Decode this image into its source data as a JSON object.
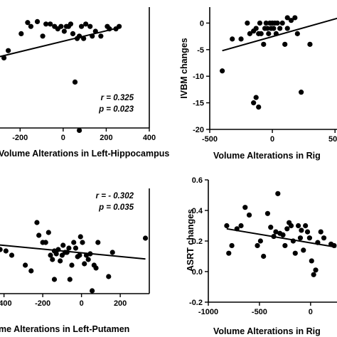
{
  "chart_data": [
    {
      "type": "scatter",
      "xlabel": "Volume Alterations in Left-Hippocampus",
      "ylabel": "",
      "xlim": [
        -300,
        400
      ],
      "ylim": [
        -21,
        4
      ],
      "xticks": [
        -200,
        0,
        200,
        400
      ],
      "xtick_labels": [
        "-200",
        "0",
        "200",
        "400"
      ],
      "yticks": [],
      "annotations": [
        "r = 0.325",
        "p = 0.023"
      ],
      "points": [
        [
          -275,
          -6.5
        ],
        [
          -255,
          -5
        ],
        [
          -195,
          -1.5
        ],
        [
          -165,
          0.8
        ],
        [
          -150,
          0
        ],
        [
          -120,
          1
        ],
        [
          -95,
          -2
        ],
        [
          -80,
          0.5
        ],
        [
          -60,
          0.5
        ],
        [
          -40,
          0
        ],
        [
          -25,
          -0.5
        ],
        [
          -10,
          0
        ],
        [
          5,
          -1
        ],
        [
          15,
          0
        ],
        [
          25,
          0
        ],
        [
          35,
          0.5
        ],
        [
          45,
          -1.5
        ],
        [
          55,
          -11.5
        ],
        [
          65,
          -2.5
        ],
        [
          75,
          -2
        ],
        [
          75,
          -21.5
        ],
        [
          85,
          0
        ],
        [
          95,
          -2.5
        ],
        [
          105,
          0.5
        ],
        [
          125,
          0
        ],
        [
          135,
          -2
        ],
        [
          150,
          -1
        ],
        [
          175,
          -2
        ],
        [
          205,
          0
        ],
        [
          215,
          -0.5
        ],
        [
          245,
          -0.5
        ],
        [
          260,
          0
        ]
      ],
      "fit": [
        [
          -300,
          -6.3
        ],
        [
          265,
          -0.2
        ]
      ]
    },
    {
      "type": "scatter",
      "xlabel": "Volume Alterations in Rig",
      "ylabel": "IVBM changes",
      "xlim": [
        -500,
        550
      ],
      "ylim": [
        -20,
        3
      ],
      "xticks": [
        -500,
        0,
        500
      ],
      "xtick_labels": [
        "-500",
        "0",
        "500"
      ],
      "yticks": [
        0,
        -5,
        -10,
        -15,
        -20
      ],
      "ytick_labels": [
        "0",
        "-5",
        "-10",
        "-15",
        "-20"
      ],
      "annotations": [],
      "points": [
        [
          -400,
          -9
        ],
        [
          -320,
          -3
        ],
        [
          -250,
          -3
        ],
        [
          -200,
          0
        ],
        [
          -180,
          -2
        ],
        [
          -150,
          -1.5
        ],
        [
          -130,
          -1
        ],
        [
          -110,
          -2
        ],
        [
          -100,
          0
        ],
        [
          -90,
          -2
        ],
        [
          -70,
          -4
        ],
        [
          -60,
          -1
        ],
        [
          -50,
          0
        ],
        [
          -40,
          -1
        ],
        [
          -30,
          -2
        ],
        [
          -20,
          0
        ],
        [
          -10,
          -1
        ],
        [
          0,
          0
        ],
        [
          10,
          -1
        ],
        [
          20,
          0
        ],
        [
          30,
          -2
        ],
        [
          40,
          0
        ],
        [
          60,
          -1
        ],
        [
          80,
          0
        ],
        [
          100,
          -4
        ],
        [
          120,
          -1
        ],
        [
          150,
          0.5
        ],
        [
          180,
          1
        ],
        [
          200,
          -2
        ],
        [
          230,
          -13
        ],
        [
          300,
          -4
        ],
        [
          -130,
          -14
        ],
        [
          -110,
          -15.8
        ],
        [
          -150,
          -15
        ],
        [
          120,
          1
        ]
      ],
      "fit": [
        [
          -400,
          -5.2
        ],
        [
          550,
          1.1
        ]
      ]
    },
    {
      "type": "scatter",
      "xlabel": "me Alterations in Left-Putamen",
      "ylabel": "",
      "xlim": [
        -450,
        350
      ],
      "ylim": [
        -15,
        22
      ],
      "xticks": [
        -400,
        -200,
        0,
        200
      ],
      "xtick_labels": [
        "-400",
        "-200",
        "0",
        "200"
      ],
      "yticks": [],
      "annotations": [
        "r = - 0.302",
        "p = 0.035"
      ],
      "points": [
        [
          -420,
          0.5
        ],
        [
          -390,
          0
        ],
        [
          -360,
          -1.5
        ],
        [
          -290,
          -5
        ],
        [
          -260,
          -7
        ],
        [
          -230,
          10
        ],
        [
          -220,
          5.5
        ],
        [
          -200,
          3
        ],
        [
          -185,
          3
        ],
        [
          -170,
          6.5
        ],
        [
          -160,
          -1.5
        ],
        [
          -150,
          -3
        ],
        [
          -140,
          0
        ],
        [
          -130,
          -1
        ],
        [
          -120,
          0.5
        ],
        [
          -110,
          -3.5
        ],
        [
          -100,
          -1.5
        ],
        [
          -95,
          2
        ],
        [
          -85,
          -0.5
        ],
        [
          -75,
          -0.5
        ],
        [
          -65,
          1
        ],
        [
          -60,
          -10
        ],
        [
          -50,
          -5
        ],
        [
          -40,
          3
        ],
        [
          -30,
          1
        ],
        [
          -20,
          -2
        ],
        [
          -10,
          -1.5
        ],
        [
          -5,
          5
        ],
        [
          5,
          3
        ],
        [
          15,
          -4.5
        ],
        [
          25,
          -1.5
        ],
        [
          35,
          -3
        ],
        [
          45,
          -1
        ],
        [
          55,
          -14
        ],
        [
          65,
          -5
        ],
        [
          75,
          -6
        ],
        [
          85,
          3
        ],
        [
          140,
          -9
        ],
        [
          160,
          -0.5
        ],
        [
          330,
          4.5
        ],
        [
          -140,
          -10
        ]
      ],
      "fit": [
        [
          -450,
          2.3
        ],
        [
          330,
          -2.8
        ]
      ]
    },
    {
      "type": "scatter",
      "xlabel": "Volume Alterations in Rig",
      "ylabel": "ASRT changes",
      "xlim": [
        -1000,
        300
      ],
      "ylim": [
        -0.2,
        0.6
      ],
      "xticks": [
        -1000,
        -500,
        0
      ],
      "xtick_labels": [
        "-1000",
        "-500",
        "0"
      ],
      "yticks": [
        0.6,
        0.4,
        0.2,
        0.0,
        -0.2
      ],
      "ytick_labels": [
        "0.6",
        "0.4",
        "0.2",
        "0.0",
        "-0.2"
      ],
      "annotations": [],
      "points": [
        [
          -820,
          0.3
        ],
        [
          -800,
          0.12
        ],
        [
          -770,
          0.17
        ],
        [
          -720,
          0.28
        ],
        [
          -680,
          0.3
        ],
        [
          -640,
          0.42
        ],
        [
          -600,
          0.37
        ],
        [
          -520,
          0.17
        ],
        [
          -490,
          0.2
        ],
        [
          -460,
          0.1
        ],
        [
          -420,
          0.38
        ],
        [
          -390,
          0.29
        ],
        [
          -360,
          0.23
        ],
        [
          -340,
          0.26
        ],
        [
          -320,
          0.51
        ],
        [
          -300,
          0.25
        ],
        [
          -270,
          0.24
        ],
        [
          -250,
          0.17
        ],
        [
          -230,
          0.28
        ],
        [
          -210,
          0.32
        ],
        [
          -190,
          0.3
        ],
        [
          -170,
          0.2
        ],
        [
          -150,
          0.12
        ],
        [
          -120,
          0.3
        ],
        [
          -100,
          0.22
        ],
        [
          -90,
          0.27
        ],
        [
          -70,
          0.14
        ],
        [
          -50,
          0.3
        ],
        [
          -30,
          0.26
        ],
        [
          -10,
          0.22
        ],
        [
          10,
          0.07
        ],
        [
          30,
          -0.02
        ],
        [
          50,
          0.01
        ],
        [
          70,
          0.19
        ],
        [
          100,
          0.26
        ],
        [
          130,
          0.22
        ],
        [
          200,
          0.18
        ],
        [
          230,
          0.17
        ]
      ],
      "fit": [
        [
          -820,
          0.28
        ],
        [
          250,
          0.16
        ]
      ]
    }
  ]
}
